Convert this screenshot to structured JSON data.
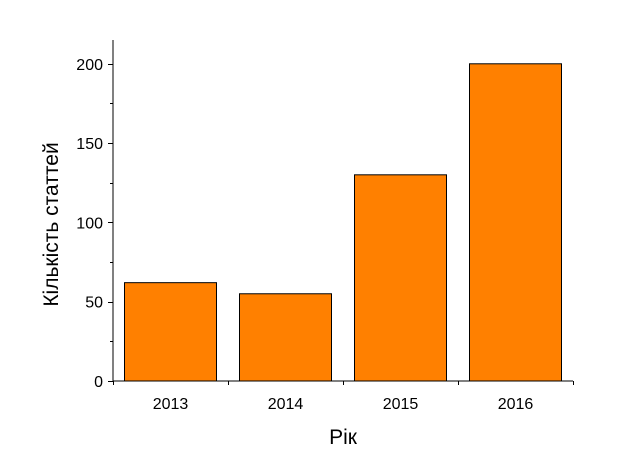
{
  "chart_data": {
    "type": "bar",
    "categories": [
      "2013",
      "2014",
      "2015",
      "2016"
    ],
    "values": [
      62,
      55,
      130,
      200
    ],
    "xlabel": "Рік",
    "ylabel": "Кількість статтей",
    "ylim": [
      0,
      215
    ],
    "yticks": [
      "0",
      "50",
      "100",
      "150",
      "200"
    ],
    "grid": false,
    "colors": {
      "bar_fill": "#ff8000",
      "bar_stroke": "#000000",
      "axis": "#000000"
    }
  }
}
